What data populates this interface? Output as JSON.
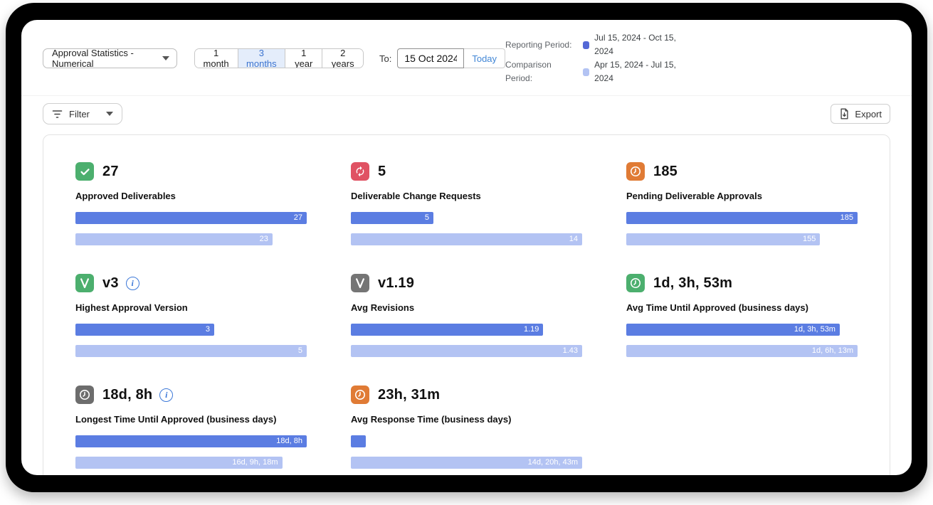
{
  "toolbar": {
    "report_select": {
      "value": "Approval Statistics - Numerical"
    },
    "range_options": [
      {
        "label": "1 month",
        "selected": false
      },
      {
        "label": "3 months",
        "selected": true
      },
      {
        "label": "1 year",
        "selected": false
      },
      {
        "label": "2 years",
        "selected": false
      }
    ],
    "to_label": "To:",
    "date_value": "15 Oct 2024",
    "today_label": "Today",
    "legend": {
      "reporting_label": "Reporting Period:",
      "reporting_value": "Jul 15, 2024 - Oct 15, 2024",
      "reporting_color": "#5468d6",
      "comparison_label": "Comparison Period:",
      "comparison_value": "Apr 15, 2024 - Jul 15, 2024",
      "comparison_color": "#b3c3f3"
    },
    "filter_label": "Filter",
    "export_label": "Export"
  },
  "colors": {
    "bar_primary": "#5b7de2",
    "bar_comparison": "#b3c3f3"
  },
  "tiles": [
    {
      "icon": "check",
      "icon_bg": "#4caf6e",
      "value": "27",
      "info": false,
      "label": "Approved Deliverables",
      "bars": [
        {
          "text": "27",
          "pct": 100,
          "kind": "primary"
        },
        {
          "text": "23",
          "pct": 85.2,
          "kind": "comparison"
        }
      ]
    },
    {
      "icon": "refresh",
      "icon_bg": "#e05263",
      "value": "5",
      "info": false,
      "label": "Deliverable Change Requests",
      "bars": [
        {
          "text": "5",
          "pct": 35.7,
          "kind": "primary"
        },
        {
          "text": "14",
          "pct": 100,
          "kind": "comparison"
        }
      ]
    },
    {
      "icon": "clock",
      "icon_bg": "#e07b35",
      "value": "185",
      "info": false,
      "label": "Pending Deliverable Approvals",
      "bars": [
        {
          "text": "185",
          "pct": 100,
          "kind": "primary"
        },
        {
          "text": "155",
          "pct": 83.8,
          "kind": "comparison"
        }
      ]
    },
    {
      "icon": "letter-v",
      "icon_bg": "#4caf6e",
      "value": "v3",
      "info": true,
      "label": "Highest Approval Version",
      "bars": [
        {
          "text": "3",
          "pct": 60,
          "kind": "primary"
        },
        {
          "text": "5",
          "pct": 100,
          "kind": "comparison"
        }
      ]
    },
    {
      "icon": "letter-v",
      "icon_bg": "#757575",
      "value": "v1.19",
      "info": false,
      "label": "Avg Revisions",
      "bars": [
        {
          "text": "1.19",
          "pct": 83.2,
          "kind": "primary"
        },
        {
          "text": "1.43",
          "pct": 100,
          "kind": "comparison"
        }
      ]
    },
    {
      "icon": "clock",
      "icon_bg": "#4caf6e",
      "value": "1d, 3h, 53m",
      "info": false,
      "label": "Avg Time Until Approved (business days)",
      "bars": [
        {
          "text": "1d, 3h, 53m",
          "pct": 92.3,
          "kind": "primary"
        },
        {
          "text": "1d, 6h, 13m",
          "pct": 100,
          "kind": "comparison"
        }
      ]
    },
    {
      "icon": "clock",
      "icon_bg": "#6d6d6d",
      "value": "18d, 8h",
      "info": true,
      "label": "Longest Time Until Approved (business days)",
      "bars": [
        {
          "text": "18d, 8h",
          "pct": 100,
          "kind": "primary"
        },
        {
          "text": "16d, 9h, 18m",
          "pct": 89.4,
          "kind": "comparison"
        }
      ]
    },
    {
      "icon": "clock",
      "icon_bg": "#e07b35",
      "value": "23h, 31m",
      "info": false,
      "label": "Avg Response Time (business days)",
      "bars": [
        {
          "text": "",
          "pct": 6.6,
          "kind": "primary"
        },
        {
          "text": "14d, 20h, 43m",
          "pct": 100,
          "kind": "comparison"
        }
      ]
    }
  ]
}
